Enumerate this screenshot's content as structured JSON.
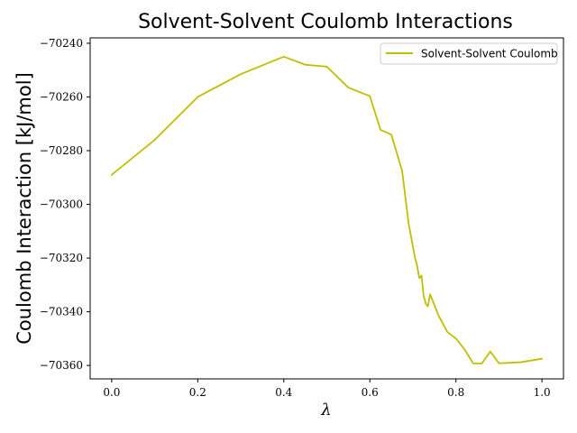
{
  "chart_data": {
    "type": "line",
    "title": "Solvent-Solvent Coulomb Interactions",
    "xlabel": "λ",
    "ylabel": "Coulomb Interaction [kJ/mol]",
    "xlim": [
      -0.05,
      1.05
    ],
    "ylim": [
      -70365,
      -70238
    ],
    "xticks": [
      0.0,
      0.2,
      0.4,
      0.6,
      0.8,
      1.0
    ],
    "xtick_labels": [
      "0.0",
      "0.2",
      "0.4",
      "0.6",
      "0.8",
      "1.0"
    ],
    "yticks": [
      -70240,
      -70260,
      -70280,
      -70300,
      -70320,
      -70340,
      -70360
    ],
    "ytick_labels": [
      "−70240",
      "−70260",
      "−70280",
      "−70300",
      "−70320",
      "−70340",
      "−70360"
    ],
    "grid": false,
    "legend_position": "top-right",
    "series": [
      {
        "name": "Solvent-Solvent Coulomb",
        "color": "#bfbf00",
        "x": [
          0.0,
          0.1,
          0.2,
          0.3,
          0.4,
          0.45,
          0.5,
          0.55,
          0.6,
          0.625,
          0.65,
          0.675,
          0.69,
          0.705,
          0.71,
          0.715,
          0.72,
          0.725,
          0.73,
          0.735,
          0.74,
          0.76,
          0.78,
          0.8,
          0.82,
          0.84,
          0.86,
          0.88,
          0.9,
          0.95,
          1.0
        ],
        "y": [
          -70289,
          -70276,
          -70260,
          -70251.5,
          -70245,
          -70248,
          -70248.7,
          -70256.5,
          -70259.7,
          -70272.3,
          -70274,
          -70287.5,
          -70307,
          -70320,
          -70323,
          -70327.5,
          -70326.5,
          -70334,
          -70337,
          -70338,
          -70333.5,
          -70341.5,
          -70347.5,
          -70350,
          -70354,
          -70359.2,
          -70359.3,
          -70354.8,
          -70359.2,
          -70358.8,
          -70357.5
        ]
      }
    ]
  }
}
